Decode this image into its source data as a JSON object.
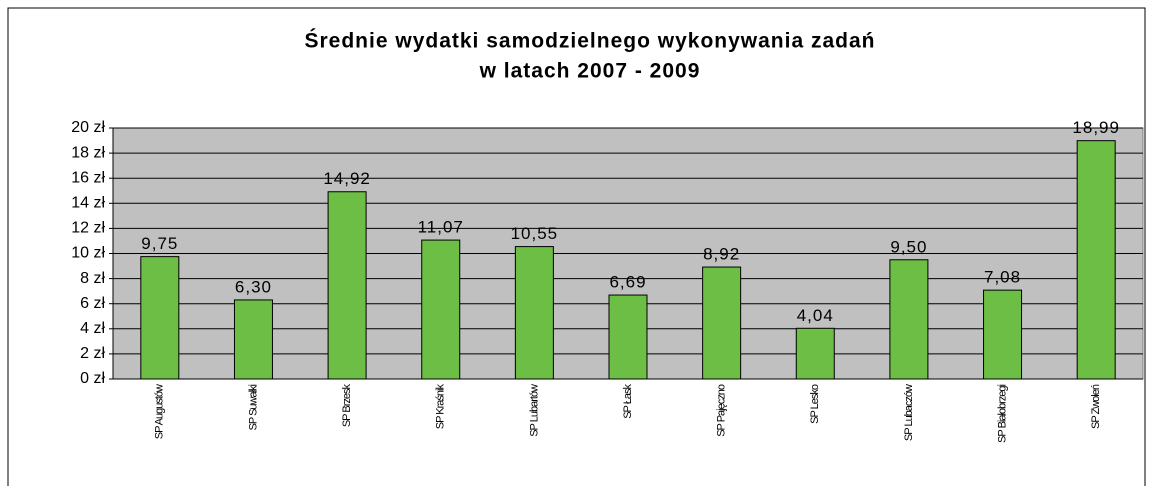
{
  "chart_data": {
    "type": "bar",
    "title": [
      "Średnie wydatki samodzielnego wykonywania zadań",
      "w latach 2007 - 2009"
    ],
    "categories": [
      "SP Augustów",
      "SP Suwałki",
      "SP Brzesk",
      "SP Kraśnik",
      "SP Lubartów",
      "SP Łask",
      "SP Pajęczno",
      "SP Lesko",
      "SP Lubaczów",
      "SP Białobrzegi",
      "SP Zwoleń"
    ],
    "values": [
      9.75,
      6.3,
      14.92,
      11.07,
      10.55,
      6.69,
      8.92,
      4.04,
      9.5,
      7.08,
      18.99
    ],
    "value_labels": [
      "9,75",
      "6,30",
      "14,92",
      "11,07",
      "10,55",
      "6,69",
      "8,92",
      "4,04",
      "9,50",
      "7,08",
      "18,99"
    ],
    "color": "#6cbf44",
    "ylim": [
      0,
      20
    ],
    "yticks": [
      {
        "value": 0,
        "label": "0 zł"
      },
      {
        "value": 2,
        "label": "2 zł"
      },
      {
        "value": 4,
        "label": "4 zł"
      },
      {
        "value": 6,
        "label": "6 zł"
      },
      {
        "value": 8,
        "label": "8 zł"
      },
      {
        "value": 10,
        "label": "10 zł"
      },
      {
        "value": 12,
        "label": "12 zł"
      },
      {
        "value": 14,
        "label": "14 zł"
      },
      {
        "value": 16,
        "label": "16 zł"
      },
      {
        "value": 18,
        "label": "18 zł"
      },
      {
        "value": 20,
        "label": "20 zł"
      }
    ],
    "grid": true
  }
}
